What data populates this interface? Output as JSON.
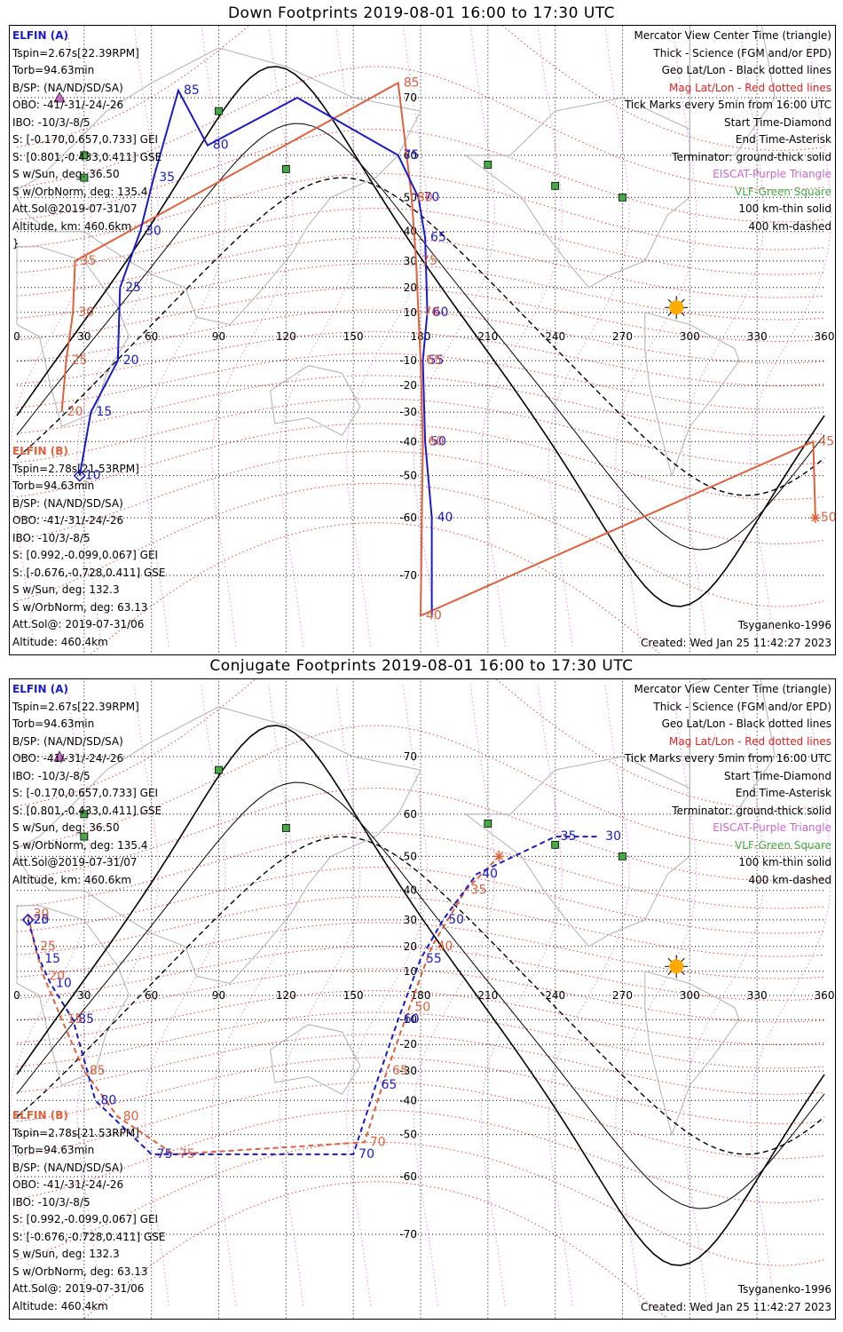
{
  "panels": [
    {
      "title": "Down Footprints 2019-08-01 16:00 to 17:30 UTC",
      "sat_a": {
        "name": "ELFIN (A)",
        "lines": [
          "Tspin=2.67s[22.39RPM]",
          "Torb=94.63min",
          "B/SP: (NA/ND/SD/SA)",
          "OBO: -41/-31/-24/-26",
          "IBO: -10/3/-8/5",
          "S: [-0.170,0.657,0.733] GEI",
          "S: [0.801,-0.433,0.411] GSE",
          "S w/Sun, deg: 36.50",
          "S w/OrbNorm, deg: 135.4",
          "Att.Sol@2019-07-31/07",
          "Altitude, km: 460.6km"
        ]
      },
      "sat_b": {
        "name": "ELFIN (B)",
        "lines": [
          "Tspin=2.78s[21.53RPM]",
          "Torb=94.63min",
          "B/SP: (NA/ND/SD/SA)",
          "OBO: -41/-31/-24/-26",
          "IBO: -10/3/-8/5",
          "S: [0.992,-0.099,0.067] GEI",
          "S: [-0.676,-0.728,0.411] GSE",
          "S w/Sun, deg: 132.3",
          "S w/OrbNorm, deg: 63.13",
          "Att.Sol@: 2019-07-31/06",
          "Altitude: 460.4km"
        ]
      },
      "legend": [
        "Mercator View Center Time (triangle)",
        "Thick - Science (FGM and/or EPD)",
        "Geo Lat/Lon - Black dotted lines",
        "Mag Lat/Lon - Red dotted lines",
        "Tick Marks every 5min from 16:00 UTC",
        "Start Time-Diamond",
        "End Time-Asterisk",
        "Terminator: ground-thick solid",
        "EISCAT-Purple Triangle",
        "VLF-Green Square",
        "100 km-thin solid",
        "400 km-dashed"
      ],
      "model": "Tsyganenko-1996",
      "created": "Created: Wed Jan 25 11:42:27 2023"
    },
    {
      "title": "Conjugate Footprints 2019-08-01 16:00 to 17:30 UTC",
      "sat_a": {
        "name": "ELFIN (A)",
        "lines": [
          "Tspin=2.67s[22.39RPM]",
          "Torb=94.63min",
          "B/SP: (NA/ND/SD/SA)",
          "OBO: -41/-31/-24/-26",
          "IBO: -10/3/-8/5",
          "S: [-0.170,0.657,0.733] GEI",
          "S: [0.801,-0.433,0.411] GSE",
          "S w/Sun, deg: 36.50",
          "S w/OrbNorm, deg: 135.4",
          "Att.Sol@2019-07-31/07",
          "Altitude, km: 460.6km"
        ]
      },
      "sat_b": {
        "name": "ELFIN (B)",
        "lines": [
          "Tspin=2.78s[21.53RPM]",
          "Torb=94.63min",
          "B/SP: (NA/ND/SD/SA)",
          "OBO: -41/-31/-24/-26",
          "IBO: -10/3/-8/5",
          "S: [0.992,-0.099,0.067] GEI",
          "S: [-0.676,-0.728,0.411] GSE",
          "S w/Sun, deg: 132.3",
          "S w/OrbNorm, deg: 63.13",
          "Att.Sol@: 2019-07-31/06",
          "Altitude: 460.4km"
        ]
      },
      "legend": [
        "Mercator View Center Time (triangle)",
        "Thick - Science (FGM and/or EPD)",
        "Geo Lat/Lon - Black dotted lines",
        "Mag Lat/Lon - Red dotted lines",
        "Tick Marks every 5min from 16:00 UTC",
        "Start Time-Diamond",
        "End Time-Asterisk",
        "Terminator: ground-thick solid",
        "EISCAT-Purple Triangle",
        "VLF-Green Square",
        "100 km-thin solid",
        "400 km-dashed"
      ],
      "model": "Tsyganenko-1996",
      "created": "Created: Wed Jan 25 11:42:27 2023"
    }
  ],
  "lon_ticks": [
    "0",
    "30",
    "60",
    "90",
    "120",
    "150",
    "180",
    "210",
    "240",
    "270",
    "300",
    "330",
    "360"
  ],
  "lat_ticks": [
    "70",
    "60",
    "50",
    "40",
    "30",
    "20",
    "10",
    "-10",
    "-20",
    "-30",
    "-40",
    "-50",
    "-60",
    "-70"
  ],
  "colors": {
    "elfin_a": "#1a1ac8",
    "elfin_b": "#e0603c",
    "mag_grid": "#e02020",
    "geo_grid": "#000000",
    "eiscat": "#cc66cc",
    "vlf": "#44aa44",
    "sun": "#ffaa00"
  },
  "footprints": {
    "down": {
      "a": {
        "points": [
          [
            28,
            -50
          ],
          [
            33,
            -30
          ],
          [
            45,
            -10
          ],
          [
            46,
            20
          ],
          [
            55,
            40
          ],
          [
            61,
            55
          ],
          [
            72,
            71
          ],
          [
            85,
            62
          ],
          [
            125,
            70
          ],
          [
            170,
            60
          ],
          [
            179,
            50
          ],
          [
            182,
            38
          ],
          [
            183,
            10
          ],
          [
            181,
            -10
          ],
          [
            182,
            -40
          ],
          [
            185,
            -60
          ],
          [
            185,
            -75
          ]
        ],
        "labels": [
          "10",
          "15",
          "20",
          "25",
          "30",
          "35",
          "85",
          "80",
          "75",
          "70",
          "65",
          "60",
          "55",
          "50",
          "40"
        ]
      },
      "b": {
        "points": [
          [
            20,
            -30
          ],
          [
            22,
            -10
          ],
          [
            25,
            10
          ],
          [
            26,
            30
          ],
          [
            170,
            72
          ],
          [
            176,
            50
          ],
          [
            178,
            30
          ],
          [
            179,
            10
          ],
          [
            180,
            -10
          ],
          [
            181,
            -40
          ],
          [
            180,
            -75
          ],
          [
            355,
            -40
          ],
          [
            356,
            -60
          ]
        ],
        "labels": [
          "20",
          "25",
          "30",
          "35",
          "85",
          "80",
          "75",
          "70",
          "65",
          "60",
          "40",
          "45",
          "50"
        ]
      }
    },
    "conjugate": {
      "a": {
        "points": [
          [
            5,
            30
          ],
          [
            10,
            15
          ],
          [
            15,
            5
          ],
          [
            25,
            -10
          ],
          [
            35,
            -40
          ],
          [
            60,
            -55
          ],
          [
            150,
            -55
          ],
          [
            160,
            -35
          ],
          [
            170,
            -10
          ],
          [
            180,
            15
          ],
          [
            190,
            30
          ],
          [
            205,
            45
          ],
          [
            240,
            55
          ],
          [
            260,
            55
          ]
        ],
        "labels": [
          "25",
          "20",
          "15",
          "10",
          "85",
          "80",
          "75",
          "70",
          "65",
          "60",
          "55",
          "50",
          "40",
          "35",
          "30"
        ]
      },
      "b": {
        "points": [
          [
            5,
            32
          ],
          [
            8,
            20
          ],
          [
            12,
            8
          ],
          [
            20,
            -10
          ],
          [
            30,
            -30
          ],
          [
            45,
            -45
          ],
          [
            70,
            -55
          ],
          [
            155,
            -52
          ],
          [
            165,
            -30
          ],
          [
            175,
            -5
          ],
          [
            185,
            20
          ],
          [
            200,
            40
          ],
          [
            215,
            50
          ]
        ],
        "labels": [
          "30",
          "25",
          "20",
          "15",
          "85",
          "80",
          "75",
          "70",
          "65",
          "50",
          "40",
          "35"
        ]
      }
    }
  },
  "vlf_sites": [
    [
      90,
      68
    ],
    [
      30,
      60
    ],
    [
      30,
      55
    ],
    [
      120,
      57
    ],
    [
      210,
      58
    ],
    [
      240,
      53
    ],
    [
      270,
      50
    ]
  ],
  "sun": [
    294,
    12
  ],
  "eiscat": [
    19,
    70
  ]
}
